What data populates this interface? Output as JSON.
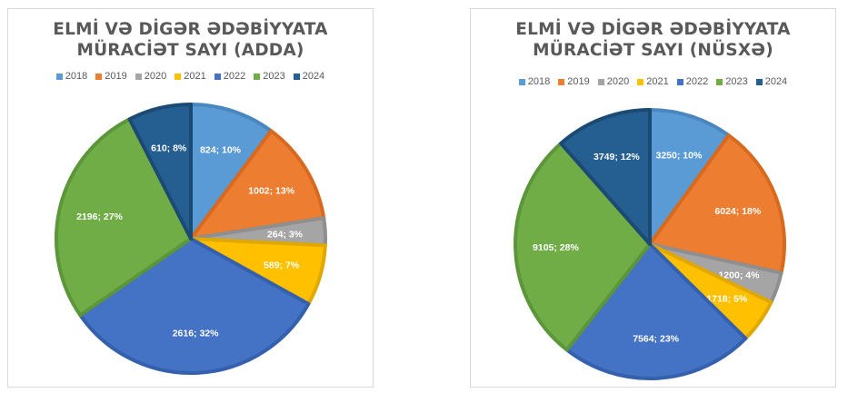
{
  "chart_data": [
    {
      "type": "pie",
      "title_line1": "ELMİ VƏ DİGƏR ƏDƏBİYYATA",
      "title_line2": "MÜRACİƏT SAYI (ADDA)",
      "categories": [
        "2018",
        "2019",
        "2020",
        "2021",
        "2022",
        "2023",
        "2024"
      ],
      "values": [
        824,
        1002,
        264,
        589,
        2616,
        2196,
        610
      ],
      "labels": [
        "824; 10%",
        "1002; 13%",
        "264; 3%",
        "589; 7%",
        "2616; 32%",
        "2196; 27%",
        "610; 8%"
      ],
      "legend_position": "top"
    },
    {
      "type": "pie",
      "title_line1": "ELMİ VƏ DİGƏR ƏDƏBİYYATA",
      "title_line2": "MÜRACİƏT SAYI (NÜSXƏ)",
      "categories": [
        "2018",
        "2019",
        "2020",
        "2021",
        "2022",
        "2023",
        "2024"
      ],
      "values": [
        3250,
        6024,
        1200,
        1718,
        7564,
        9105,
        3749
      ],
      "labels": [
        "3250; 10%",
        "6024; 18%",
        "1200; 4%",
        "1718; 5%",
        "7564; 23%",
        "9105; 28%",
        "3749; 12%"
      ],
      "legend_position": "top"
    }
  ],
  "colors": [
    "#5B9BD5",
    "#ED7D31",
    "#A5A5A5",
    "#FFC000",
    "#4472C4",
    "#70AD47",
    "#255E91"
  ],
  "borders": [
    "#4a86c0",
    "#d86a20",
    "#8f8f8f",
    "#e0a800",
    "#3560ad",
    "#5c963a",
    "#1b4a75"
  ]
}
